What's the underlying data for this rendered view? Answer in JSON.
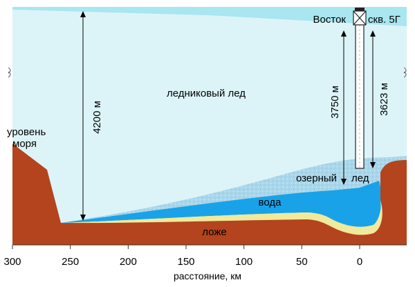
{
  "labels": {
    "station": "Восток",
    "borehole": "скв. 5Г",
    "glacier_ice": "ледниковый лед",
    "sea_level": [
      "уровень",
      "моря"
    ],
    "lake_ice_word1": "озерный",
    "lake_ice_word2": "лед",
    "water": "вода",
    "bed": "ложе"
  },
  "measurements": {
    "ice_thickness": "4200 м",
    "lake_ice_depth": "3750 м",
    "borehole_depth": "3623 м"
  },
  "axis": {
    "ticks": [
      "300",
      "250",
      "200",
      "150",
      "100",
      "50",
      "0"
    ],
    "label": "расстояние, км"
  },
  "colors": {
    "glacier_ice": "#dcf4f8",
    "ice_surface": "#a8e6f0",
    "lake_ice": "#a8d8ec",
    "water": "#1aa2e8",
    "sediment": "#f0ea9a",
    "bedrock": "#b4441e",
    "borehole": "#ffffff"
  }
}
